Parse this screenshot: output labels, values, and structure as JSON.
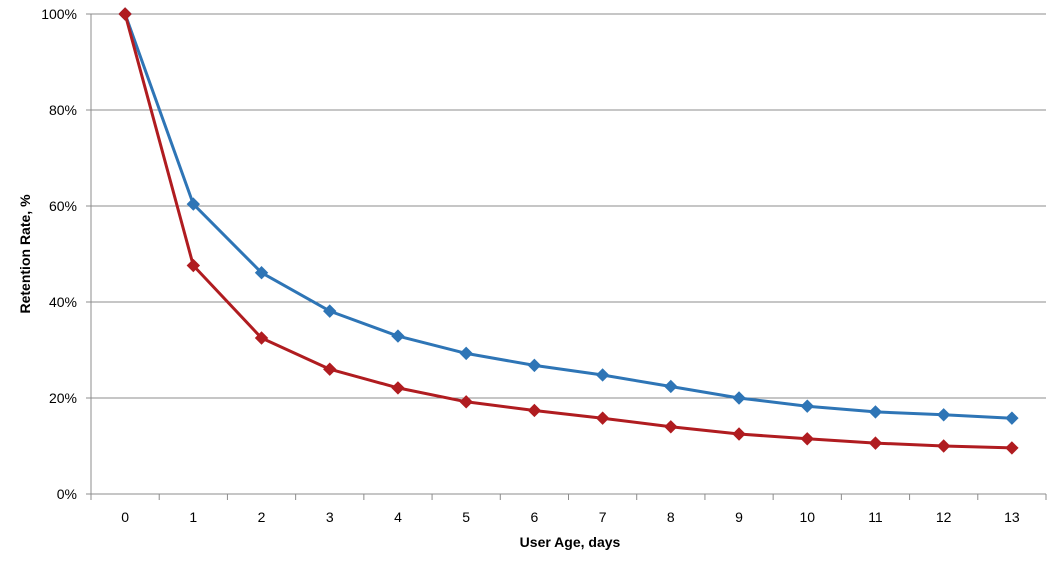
{
  "chart_data": {
    "type": "line",
    "title": "",
    "xlabel": "User Age, days",
    "ylabel": "Retention Rate, %",
    "x": [
      0,
      1,
      2,
      3,
      4,
      5,
      6,
      7,
      8,
      9,
      10,
      11,
      12,
      13
    ],
    "x_tick_labels": [
      "0",
      "1",
      "2",
      "3",
      "4",
      "5",
      "6",
      "7",
      "8",
      "9",
      "10",
      "11",
      "12",
      "13"
    ],
    "y_tick_labels": [
      "0%",
      "20%",
      "40%",
      "60%",
      "80%",
      "100%"
    ],
    "y_ticks": [
      0,
      20,
      40,
      60,
      80,
      100
    ],
    "ylim": [
      0,
      100
    ],
    "grid": "horizontal",
    "legend": "none",
    "series": [
      {
        "color": "#2E75B6",
        "marker": "diamond",
        "values": [
          100,
          60.4,
          46.1,
          38.1,
          32.9,
          29.3,
          26.8,
          24.8,
          22.4,
          20.0,
          18.3,
          17.1,
          16.5,
          15.8
        ]
      },
      {
        "color": "#B01C20",
        "marker": "diamond",
        "values": [
          100,
          47.6,
          32.5,
          26.0,
          22.1,
          19.2,
          17.4,
          15.8,
          14.0,
          12.5,
          11.5,
          10.6,
          10.0,
          9.6
        ]
      }
    ]
  }
}
